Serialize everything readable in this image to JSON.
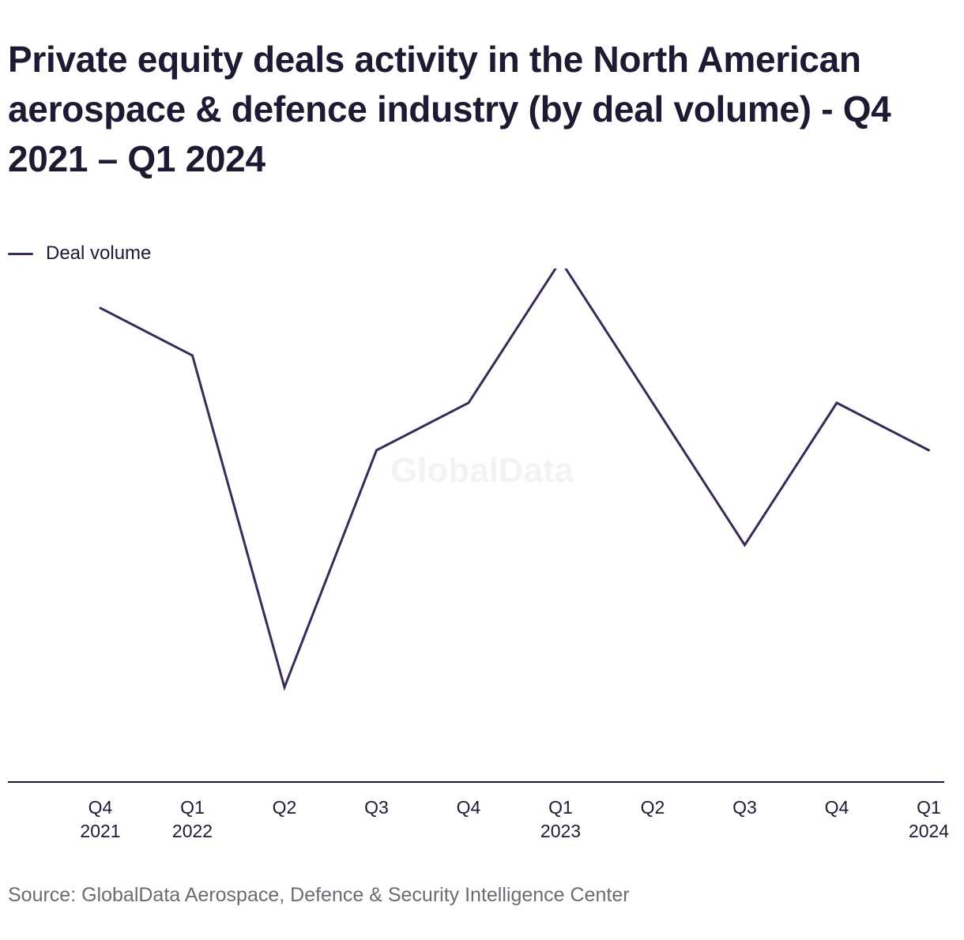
{
  "chart_data": {
    "type": "line",
    "title": "Private equity deals activity in the North American aerospace & defence industry (by deal volume) - Q4 2021 – Q1 2024",
    "categories": [
      {
        "top": "Q4",
        "bottom": "2021"
      },
      {
        "top": "Q1",
        "bottom": "2022"
      },
      {
        "top": "Q2",
        "bottom": ""
      },
      {
        "top": "Q3",
        "bottom": ""
      },
      {
        "top": "Q4",
        "bottom": ""
      },
      {
        "top": "Q1",
        "bottom": "2023"
      },
      {
        "top": "Q2",
        "bottom": ""
      },
      {
        "top": "Q3",
        "bottom": ""
      },
      {
        "top": "Q4",
        "bottom": ""
      },
      {
        "top": "Q1",
        "bottom": "2024"
      }
    ],
    "series": [
      {
        "name": "Deal volume",
        "color": "#3b2a57",
        "values": [
          9,
          8,
          1,
          6,
          7,
          10,
          7,
          4,
          7,
          6
        ]
      }
    ],
    "ylim": [
      -1,
      11
    ],
    "grid": false,
    "legend_position": "top-left",
    "watermark": "GlobalData",
    "source": "Source: GlobalData Aerospace, Defence & Security Intelligence Center"
  }
}
